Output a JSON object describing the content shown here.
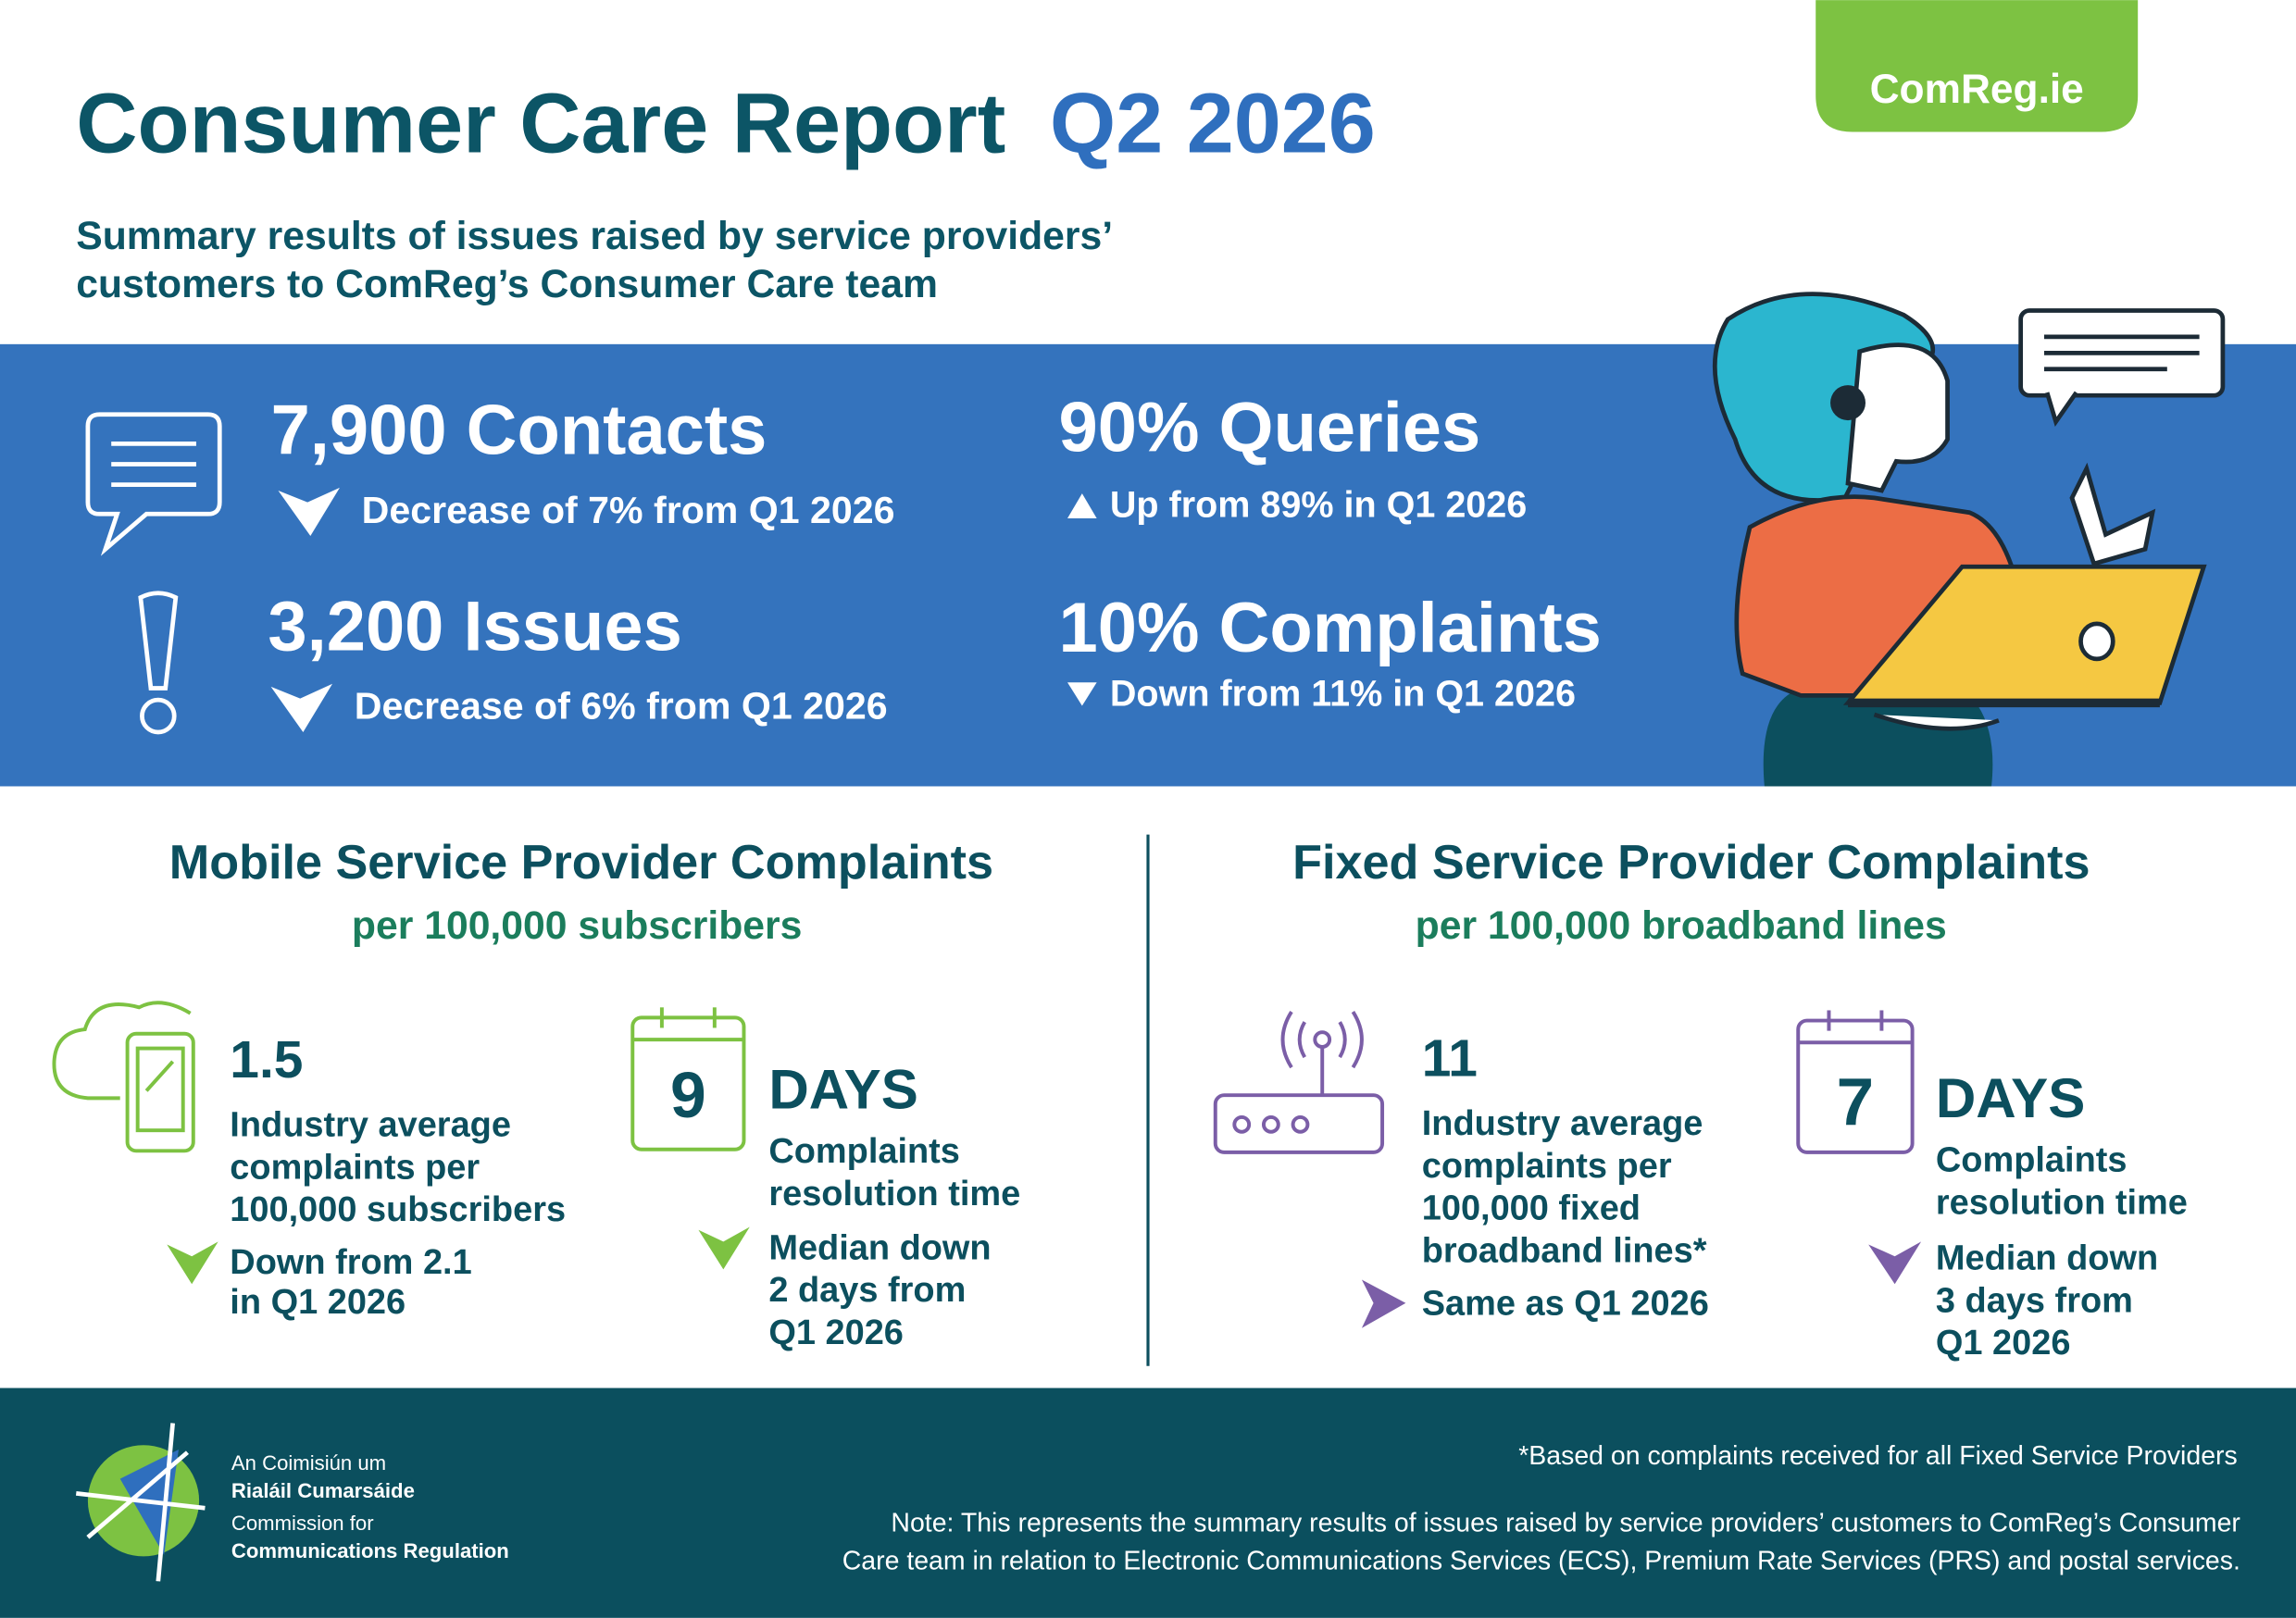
{
  "brand": "ComReg.ie",
  "header": {
    "title": "Consumer Care Report",
    "title_highlight": "Q2 2026",
    "subtitle_lines": [
      "Summary results of issues raised by service providers’",
      "customers to ComReg’s Consumer Care team"
    ]
  },
  "summary": {
    "contacts": {
      "headline": "7,900 Contacts",
      "change": "Decrease of 7% from Q1 2026"
    },
    "issues": {
      "headline": "3,200 Issues",
      "change": "Decrease of 6% from Q1 2026"
    },
    "queries": {
      "headline": "90% Queries",
      "change": "Up from 89% in Q1 2026"
    },
    "complaints": {
      "headline": "10% Complaints",
      "change": "Down from 11% in Q1 2026"
    }
  },
  "mobile": {
    "title": "Mobile Service Provider Complaints",
    "subtitle": "per 100,000 subscribers",
    "average": {
      "value": "1.5",
      "description_lines": [
        "Industry average",
        "complaints per",
        "100,000 subscribers"
      ],
      "change_lines": [
        "Down from 2.1",
        "in Q1 2026"
      ]
    },
    "resolution": {
      "days": "9",
      "unit": "DAYS",
      "description_lines": [
        "Complaints",
        "resolution time"
      ],
      "change_lines": [
        "Median down",
        "2 days from",
        "Q1 2026"
      ]
    }
  },
  "fixed": {
    "title": "Fixed Service Provider Complaints",
    "subtitle": "per 100,000 broadband lines",
    "average": {
      "value": "11",
      "description_lines": [
        "Industry average",
        "complaints per",
        "100,000 fixed",
        "broadband lines*"
      ],
      "change_lines": [
        "Same as Q1 2026"
      ]
    },
    "resolution": {
      "days": "7",
      "unit": "DAYS",
      "description_lines": [
        "Complaints",
        "resolution time"
      ],
      "change_lines": [
        "Median down",
        "3 days from",
        "Q1 2026"
      ]
    }
  },
  "footer": {
    "logo_lines": [
      "An Coimisiún um",
      "Rialáil Cumarsáide",
      "Commission for",
      "Communications Regulation"
    ],
    "footnote": "*Based on complaints received for all Fixed Service Providers",
    "note_lines": [
      "Note: This represents the summary results of issues raised by service providers’ customers to ComReg’s Consumer",
      "Care team in relation to Electronic Communications Services (ECS), Premium Rate Services (PRS) and postal services."
    ]
  }
}
